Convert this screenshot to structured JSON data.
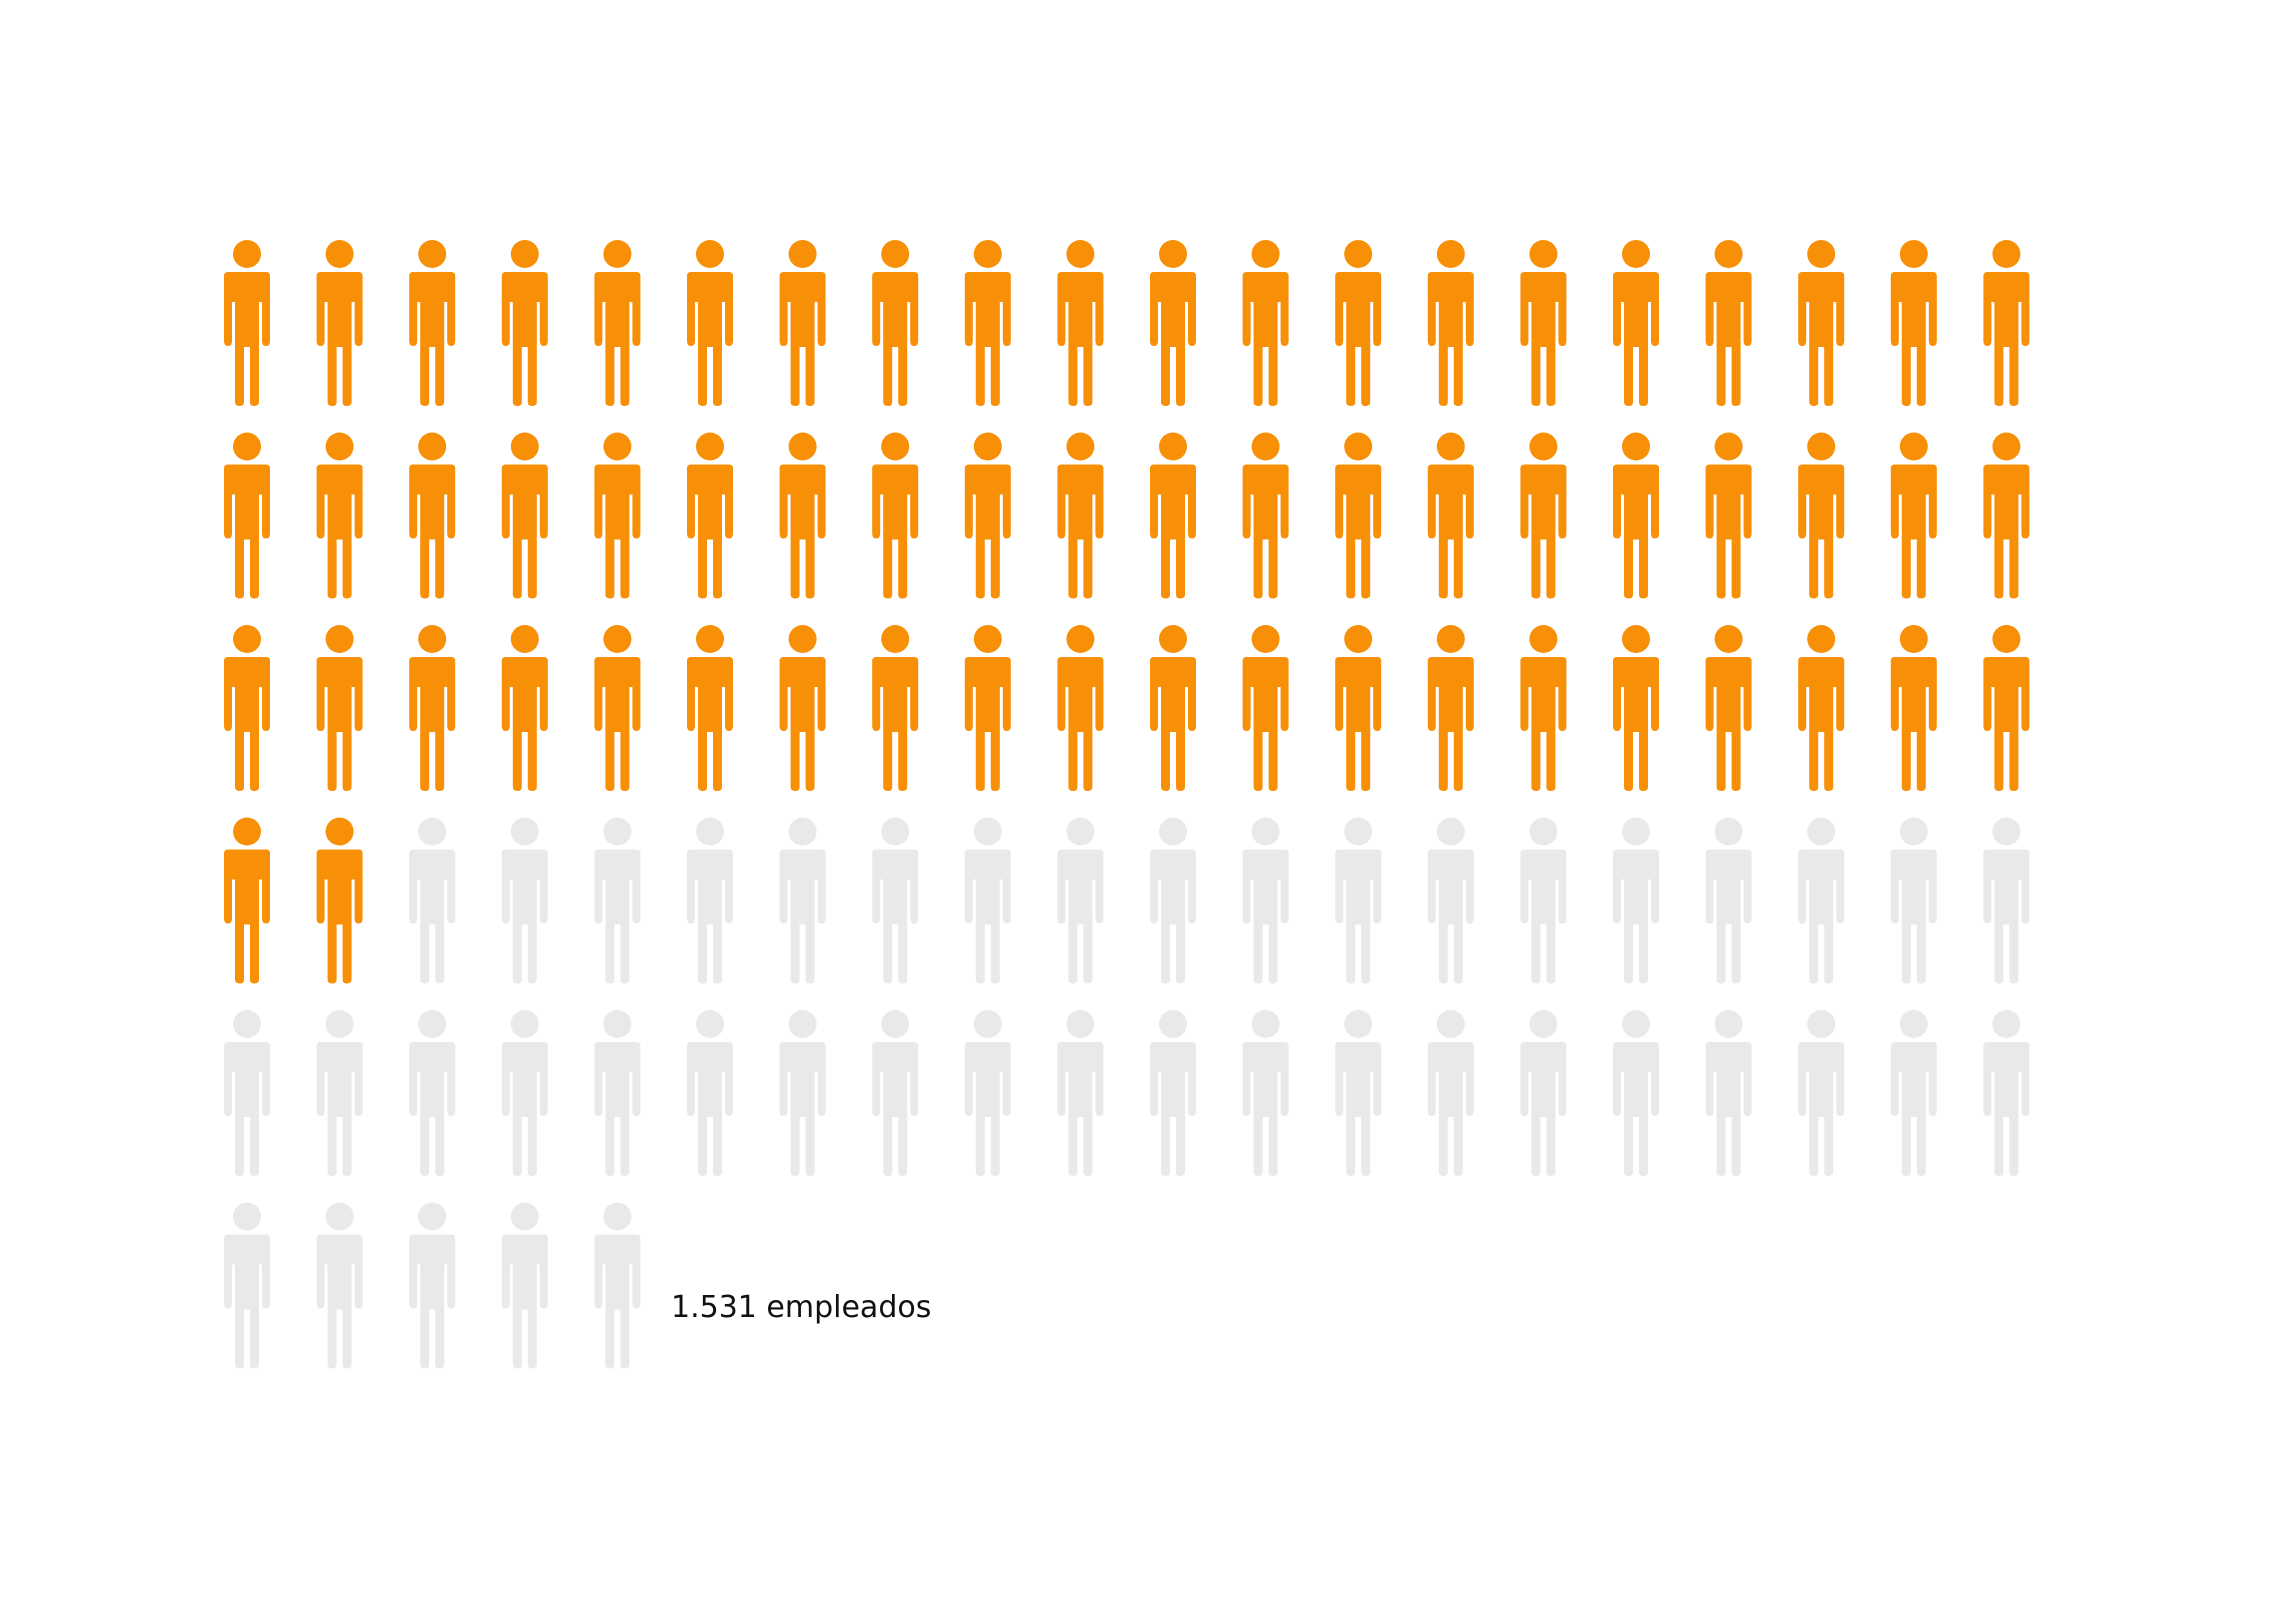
{
  "chart_data": {
    "type": "icon-array",
    "icon": "person-icon",
    "total_icons": 105,
    "highlighted_icons": 62,
    "icons_per_row": 20,
    "colors": {
      "highlighted": "#f78f07",
      "remainder": "#e9e9e9"
    },
    "label": "1.531 empleados"
  }
}
